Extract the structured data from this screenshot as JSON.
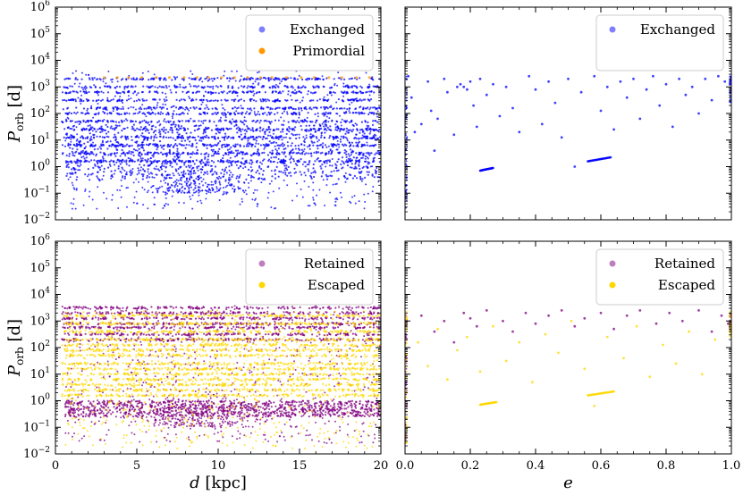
{
  "chart_data": [
    {
      "type": "scatter",
      "panel": "top-left",
      "xlabel": "",
      "ylabel": "P_orb [d]",
      "xlim": [
        0,
        20
      ],
      "ylim_log10": [
        -2,
        6
      ],
      "yscale": "log",
      "x_ticks": [
        "0",
        "5",
        "10",
        "15",
        "20"
      ],
      "y_ticks": [
        "10^-2",
        "10^-1",
        "10^0",
        "10^1",
        "10^2",
        "10^3",
        "10^4",
        "10^5",
        "10^6"
      ],
      "legend_position": "top-right",
      "series": [
        {
          "name": "Exchanged",
          "color": "#0000ff",
          "legend_color": "#7f7fff",
          "description_range": {
            "x": [
              0,
              20
            ],
            "log10_y": [
              -1.6,
              3.6
            ],
            "dense_band_log10_y": [
              -0.5,
              1.6
            ],
            "cluster_x": [
              5,
              12
            ]
          },
          "bands_log10_y": [
            3.3,
            3.0,
            2.8,
            2.5,
            2.2,
            2.0,
            1.7,
            1.4,
            1.1,
            0.8,
            0.5,
            0.2
          ]
        },
        {
          "name": "Primordial",
          "color": "#ff9900",
          "legend_color": "#ff9900",
          "points": [
            [
              3.0,
              3.35
            ],
            [
              3.8,
              3.35
            ],
            [
              4.5,
              3.35
            ],
            [
              5.3,
              3.35
            ],
            [
              6.2,
              3.35
            ],
            [
              7.0,
              3.35
            ],
            [
              7.9,
              3.35
            ],
            [
              8.7,
              3.35
            ],
            [
              9.4,
              3.35
            ],
            [
              10.2,
              3.35
            ],
            [
              11.0,
              3.35
            ],
            [
              11.8,
              3.35
            ],
            [
              12.6,
              3.35
            ],
            [
              13.3,
              3.35
            ],
            [
              14.2,
              3.35
            ],
            [
              15.1,
              3.35
            ],
            [
              15.9,
              3.35
            ],
            [
              16.8,
              3.35
            ],
            [
              17.6,
              3.35
            ],
            [
              18.5,
              3.35
            ],
            [
              19.3,
              3.35
            ]
          ]
        }
      ]
    },
    {
      "type": "scatter",
      "panel": "top-right",
      "xlabel": "",
      "ylabel": "",
      "xlim": [
        0.0,
        1.0
      ],
      "ylim_log10": [
        -2,
        6
      ],
      "yscale": "log",
      "legend_position": "top-right",
      "series": [
        {
          "name": "Exchanged",
          "color": "#0000ff",
          "legend_color": "#7f7fff",
          "points_log10_y": [
            [
              0.01,
              3.4
            ],
            [
              0.02,
              2.6
            ],
            [
              0.03,
              1.3
            ],
            [
              0.05,
              1.6
            ],
            [
              0.07,
              3.2
            ],
            [
              0.08,
              2.1
            ],
            [
              0.09,
              0.6
            ],
            [
              0.1,
              1.8
            ],
            [
              0.12,
              3.3
            ],
            [
              0.13,
              2.8
            ],
            [
              0.15,
              1.2
            ],
            [
              0.16,
              3.0
            ],
            [
              0.17,
              3.1
            ],
            [
              0.18,
              3.0
            ],
            [
              0.19,
              2.9
            ],
            [
              0.2,
              3.2
            ],
            [
              0.21,
              2.3
            ],
            [
              0.22,
              1.5
            ],
            [
              0.23,
              3.3
            ],
            [
              0.25,
              2.7
            ],
            [
              0.27,
              3.1
            ],
            [
              0.29,
              1.9
            ],
            [
              0.31,
              3.0
            ],
            [
              0.33,
              2.2
            ],
            [
              0.35,
              1.3
            ],
            [
              0.38,
              3.4
            ],
            [
              0.4,
              2.9
            ],
            [
              0.42,
              1.6
            ],
            [
              0.44,
              3.2
            ],
            [
              0.46,
              2.4
            ],
            [
              0.48,
              1.1
            ],
            [
              0.5,
              3.3
            ],
            [
              0.52,
              0.0
            ],
            [
              0.54,
              2.8
            ],
            [
              0.58,
              3.4
            ],
            [
              0.6,
              2.1
            ],
            [
              0.62,
              3.0
            ],
            [
              0.64,
              1.4
            ],
            [
              0.66,
              3.2
            ],
            [
              0.68,
              2.6
            ],
            [
              0.7,
              3.3
            ],
            [
              0.72,
              1.8
            ],
            [
              0.74,
              2.9
            ],
            [
              0.76,
              3.4
            ],
            [
              0.78,
              2.3
            ],
            [
              0.8,
              3.1
            ],
            [
              0.82,
              1.5
            ],
            [
              0.84,
              3.3
            ],
            [
              0.86,
              2.7
            ],
            [
              0.88,
              3.0
            ],
            [
              0.9,
              2.0
            ],
            [
              0.92,
              3.3
            ],
            [
              0.94,
              2.5
            ],
            [
              0.96,
              3.4
            ],
            [
              0.98,
              3.2
            ]
          ],
          "tracks": [
            {
              "e": [
                0.23,
                0.27
              ],
              "log10_y": [
                -0.15,
                -0.05
              ]
            },
            {
              "e": [
                0.56,
                0.63
              ],
              "log10_y": [
                0.2,
                0.35
              ]
            }
          ]
        }
      ]
    },
    {
      "type": "scatter",
      "panel": "bottom-left",
      "xlabel": "d [kpc]",
      "ylabel": "P_orb [d]",
      "xlim": [
        0,
        20
      ],
      "ylim_log10": [
        -2,
        6
      ],
      "yscale": "log",
      "x_ticks": [
        "0",
        "5",
        "10",
        "15",
        "20"
      ],
      "y_ticks": [
        "10^-2",
        "10^-1",
        "10^0",
        "10^1",
        "10^2",
        "10^3",
        "10^4",
        "10^5",
        "10^6"
      ],
      "legend_position": "top-right",
      "series": [
        {
          "name": "Retained",
          "color": "#800080",
          "legend_color": "#bf7fbf",
          "description_range": {
            "x": [
              0,
              20
            ],
            "log10_y": [
              -1.6,
              3.6
            ],
            "dense_band_log10_y": [
              -0.6,
              0.0
            ],
            "cluster_x": [
              5,
              12
            ]
          },
          "bands_log10_y": [
            3.5,
            3.3,
            3.1,
            2.9,
            2.75,
            2.5,
            2.3
          ]
        },
        {
          "name": "Escaped",
          "color": "#ffd700",
          "legend_color": "#ffd700",
          "description_range": {
            "x": [
              0,
              20
            ],
            "log10_y": [
              -1.8,
              3.4
            ]
          },
          "bands_log10_y": [
            3.2,
            2.9,
            2.6,
            2.3,
            2.1,
            1.9,
            1.7,
            1.4,
            1.2,
            1.0,
            0.8,
            0.6,
            0.4,
            0.2
          ]
        }
      ]
    },
    {
      "type": "scatter",
      "panel": "bottom-right",
      "xlabel": "e",
      "ylabel": "",
      "xlim": [
        0.0,
        1.0
      ],
      "ylim_log10": [
        -2,
        6
      ],
      "yscale": "log",
      "x_ticks": [
        "0.0",
        "0.2",
        "0.4",
        "0.6",
        "0.8",
        "1.0"
      ],
      "legend_position": "top-right",
      "series": [
        {
          "name": "Retained",
          "color": "#800080",
          "legend_color": "#bf7fbf",
          "points_log10_y": [
            [
              0.05,
              3.2
            ],
            [
              0.09,
              2.6
            ],
            [
              0.12,
              3.0
            ],
            [
              0.15,
              2.2
            ],
            [
              0.18,
              3.3
            ],
            [
              0.2,
              3.1
            ],
            [
              0.22,
              2.8
            ],
            [
              0.25,
              3.4
            ],
            [
              0.3,
              3.0
            ],
            [
              0.33,
              2.6
            ],
            [
              0.37,
              3.3
            ],
            [
              0.4,
              2.9
            ],
            [
              0.44,
              3.2
            ],
            [
              0.48,
              3.4
            ],
            [
              0.52,
              2.8
            ],
            [
              0.55,
              3.1
            ],
            [
              0.6,
              3.3
            ],
            [
              0.64,
              2.7
            ],
            [
              0.68,
              3.2
            ],
            [
              0.72,
              3.4
            ],
            [
              0.77,
              2.9
            ],
            [
              0.81,
              3.3
            ],
            [
              0.85,
              3.0
            ],
            [
              0.9,
              3.4
            ],
            [
              0.94,
              2.6
            ],
            [
              0.97,
              3.2
            ],
            [
              0.99,
              2.9
            ]
          ]
        },
        {
          "name": "Escaped",
          "color": "#ffd700",
          "legend_color": "#ffd700",
          "points_log10_y": [
            [
              0.04,
              2.2
            ],
            [
              0.07,
              1.3
            ],
            [
              0.1,
              2.7
            ],
            [
              0.13,
              0.8
            ],
            [
              0.16,
              1.9
            ],
            [
              0.19,
              2.4
            ],
            [
              0.23,
              1.1
            ],
            [
              0.27,
              2.8
            ],
            [
              0.31,
              1.5
            ],
            [
              0.35,
              2.2
            ],
            [
              0.39,
              0.7
            ],
            [
              0.43,
              2.5
            ],
            [
              0.47,
              1.8
            ],
            [
              0.51,
              3.0
            ],
            [
              0.55,
              1.2
            ],
            [
              0.58,
              -0.2
            ],
            [
              0.62,
              2.4
            ],
            [
              0.67,
              1.6
            ],
            [
              0.71,
              2.8
            ],
            [
              0.75,
              0.9
            ],
            [
              0.79,
              2.1
            ],
            [
              0.83,
              1.4
            ],
            [
              0.87,
              2.6
            ],
            [
              0.91,
              1.0
            ],
            [
              0.95,
              2.3
            ]
          ],
          "tracks": [
            {
              "e": [
                0.23,
                0.28
              ],
              "log10_y": [
                -0.15,
                -0.05
              ]
            },
            {
              "e": [
                0.56,
                0.64
              ],
              "log10_y": [
                0.2,
                0.35
              ]
            }
          ]
        }
      ]
    }
  ]
}
